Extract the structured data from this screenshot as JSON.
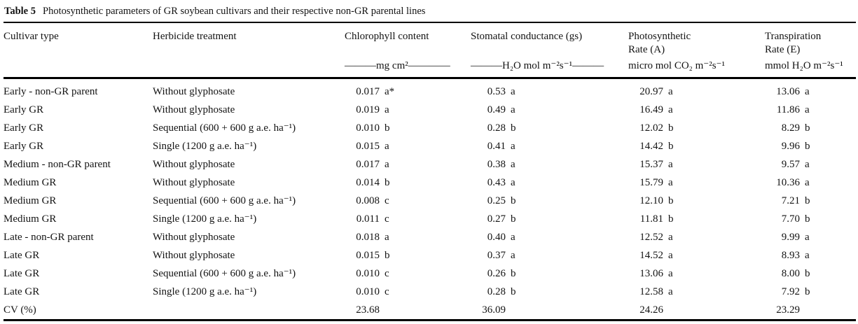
{
  "table": {
    "caption": {
      "label": "Table 5",
      "text": "Photosynthetic parameters of GR soybean cultivars and their respective non-GR parental lines"
    },
    "columns": [
      {
        "id": "cultivar-type",
        "label": "Cultivar type",
        "unit": ""
      },
      {
        "id": "herbicide-treatment",
        "label": "Herbicide treatment",
        "unit": ""
      },
      {
        "id": "chlorophyll-content",
        "label": "Chlorophyll content",
        "unit": "———mg cm²————"
      },
      {
        "id": "stomatal-conductance",
        "label": "Stomatal conductance (gs)",
        "unit": "———H₂O mol m⁻²s⁻¹———"
      },
      {
        "id": "photosynthetic-rate",
        "label": "Photosynthetic\nRate (A)",
        "unit": "micro mol CO₂ m⁻²s⁻¹"
      },
      {
        "id": "transpiration-rate",
        "label": "Transpiration\nRate (E)",
        "unit": "mmol H₂O m⁻²s⁻¹"
      }
    ],
    "rows": [
      [
        "Early - non-GR parent",
        "Without glyphosate",
        "0.017 a*",
        "0.53 a",
        "20.97 a",
        "13.06 a"
      ],
      [
        "Early GR",
        "Without glyphosate",
        "0.019 a",
        "0.49 a",
        "16.49 a",
        "11.86 a"
      ],
      [
        "Early GR",
        "Sequential (600 + 600 g a.e. ha⁻¹)",
        "0.010 b",
        "0.28 b",
        "12.02 b",
        "8.29 b"
      ],
      [
        "Early GR",
        "Single (1200 g a.e. ha⁻¹)",
        "0.015 a",
        "0.41 a",
        "14.42 b",
        "9.96 b"
      ],
      [
        "Medium - non-GR parent",
        "Without glyphosate",
        "0.017 a",
        "0.38 a",
        "15.37 a",
        "9.57 a"
      ],
      [
        "Medium GR",
        "Without glyphosate",
        "0.014 b",
        "0.43 a",
        "15.79 a",
        "10.36 a"
      ],
      [
        "Medium GR",
        "Sequential (600 + 600 g a.e. ha⁻¹)",
        "0.008 c",
        "0.25 b",
        "12.10 b",
        "7.21 b"
      ],
      [
        "Medium GR",
        "Single (1200 g a.e. ha⁻¹)",
        "0.011 c",
        "0.27 b",
        "11.81 b",
        "7.70 b"
      ],
      [
        "Late - non-GR parent",
        "Without glyphosate",
        "0.018 a",
        "0.40 a",
        "12.52 a",
        "9.99 a"
      ],
      [
        "Late GR",
        "Without glyphosate",
        "0.015 b",
        "0.37 a",
        "14.52 a",
        "8.93 a"
      ],
      [
        "Late GR",
        "Sequential (600 + 600 g a.e. ha⁻¹)",
        "0.010 c",
        "0.26 b",
        "13.06 a",
        "8.00 b"
      ],
      [
        "Late GR",
        "Single (1200 g a.e. ha⁻¹)",
        "0.010 c",
        "0.28 b",
        "12.58 a",
        "7.92 b"
      ]
    ],
    "cv_row": [
      "CV (%)",
      "",
      "23.68",
      "36.09",
      "24.26",
      "23.29"
    ],
    "colors": {
      "text": "#131313",
      "rule": "#000000",
      "background": "#ffffff"
    }
  }
}
